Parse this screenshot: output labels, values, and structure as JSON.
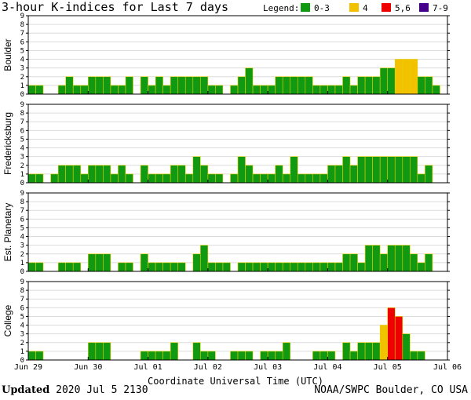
{
  "title": "3-hour K-indices for Last 7 days",
  "legend": {
    "label": "Legend:",
    "items": [
      {
        "label": "0-3",
        "color": "#119911"
      },
      {
        "label": "4",
        "color": "#f2c200"
      },
      {
        "label": "5,6",
        "color": "#ee0000"
      },
      {
        "label": "7-9",
        "color": "#440088"
      }
    ]
  },
  "footer": {
    "updated_label": "Updated",
    "updated_value": "2020 Jul  5 2130",
    "source": "NOAA/SWPC Boulder, CO USA"
  },
  "chart_data": {
    "type": "bar",
    "xlabel": "Coordinate Universal Time (UTC)",
    "x_ticks": [
      "Jun 29",
      "Jun 30",
      "Jul 01",
      "Jul 02",
      "Jul 03",
      "Jul 04",
      "Jul 05",
      "Jul 06"
    ],
    "y_ticks": [
      "0",
      "1",
      "2",
      "3",
      "4",
      "5",
      "6",
      "7",
      "8",
      "9"
    ],
    "ylim": [
      0,
      9
    ],
    "grid": "horizontal",
    "intervals_per_day": 8,
    "series": [
      {
        "name": "Boulder",
        "values": [
          1,
          1,
          0,
          0,
          1,
          2,
          1,
          1,
          2,
          2,
          2,
          1,
          1,
          2,
          0,
          2,
          1,
          2,
          1,
          2,
          2,
          2,
          2,
          2,
          1,
          1,
          0,
          1,
          2,
          3,
          1,
          1,
          1,
          2,
          2,
          2,
          2,
          2,
          1,
          1,
          1,
          1,
          2,
          1,
          2,
          2,
          2,
          3,
          3,
          4,
          4,
          4,
          2,
          2,
          1,
          0
        ]
      },
      {
        "name": "Fredericksburg",
        "values": [
          1,
          1,
          0,
          1,
          2,
          2,
          2,
          1,
          2,
          2,
          2,
          1,
          2,
          1,
          0,
          2,
          1,
          1,
          1,
          2,
          2,
          1,
          3,
          2,
          1,
          1,
          0,
          1,
          3,
          2,
          1,
          1,
          1,
          2,
          1,
          3,
          1,
          1,
          1,
          1,
          2,
          2,
          3,
          2,
          3,
          3,
          3,
          3,
          3,
          3,
          3,
          3,
          1,
          2,
          0
        ]
      },
      {
        "name": "Est. Planetary",
        "values": [
          1,
          1,
          0,
          0,
          1,
          1,
          1,
          0,
          2,
          2,
          2,
          0,
          1,
          1,
          0,
          2,
          1,
          1,
          1,
          1,
          1,
          0,
          2,
          3,
          1,
          1,
          1,
          0,
          1,
          1,
          1,
          1,
          1,
          1,
          1,
          1,
          1,
          1,
          1,
          1,
          1,
          1,
          2,
          2,
          1,
          3,
          3,
          2,
          3,
          3,
          3,
          2,
          1,
          2
        ]
      },
      {
        "name": "College",
        "values": [
          1,
          1,
          0,
          0,
          0,
          0,
          0,
          0,
          2,
          2,
          2,
          0,
          0,
          0,
          0,
          1,
          1,
          1,
          1,
          2,
          0,
          0,
          2,
          1,
          1,
          0,
          0,
          1,
          1,
          1,
          0,
          1,
          1,
          1,
          2,
          0,
          0,
          0,
          1,
          1,
          1,
          0,
          2,
          1,
          2,
          2,
          2,
          4,
          6,
          5,
          3,
          1,
          1,
          0
        ]
      }
    ]
  }
}
